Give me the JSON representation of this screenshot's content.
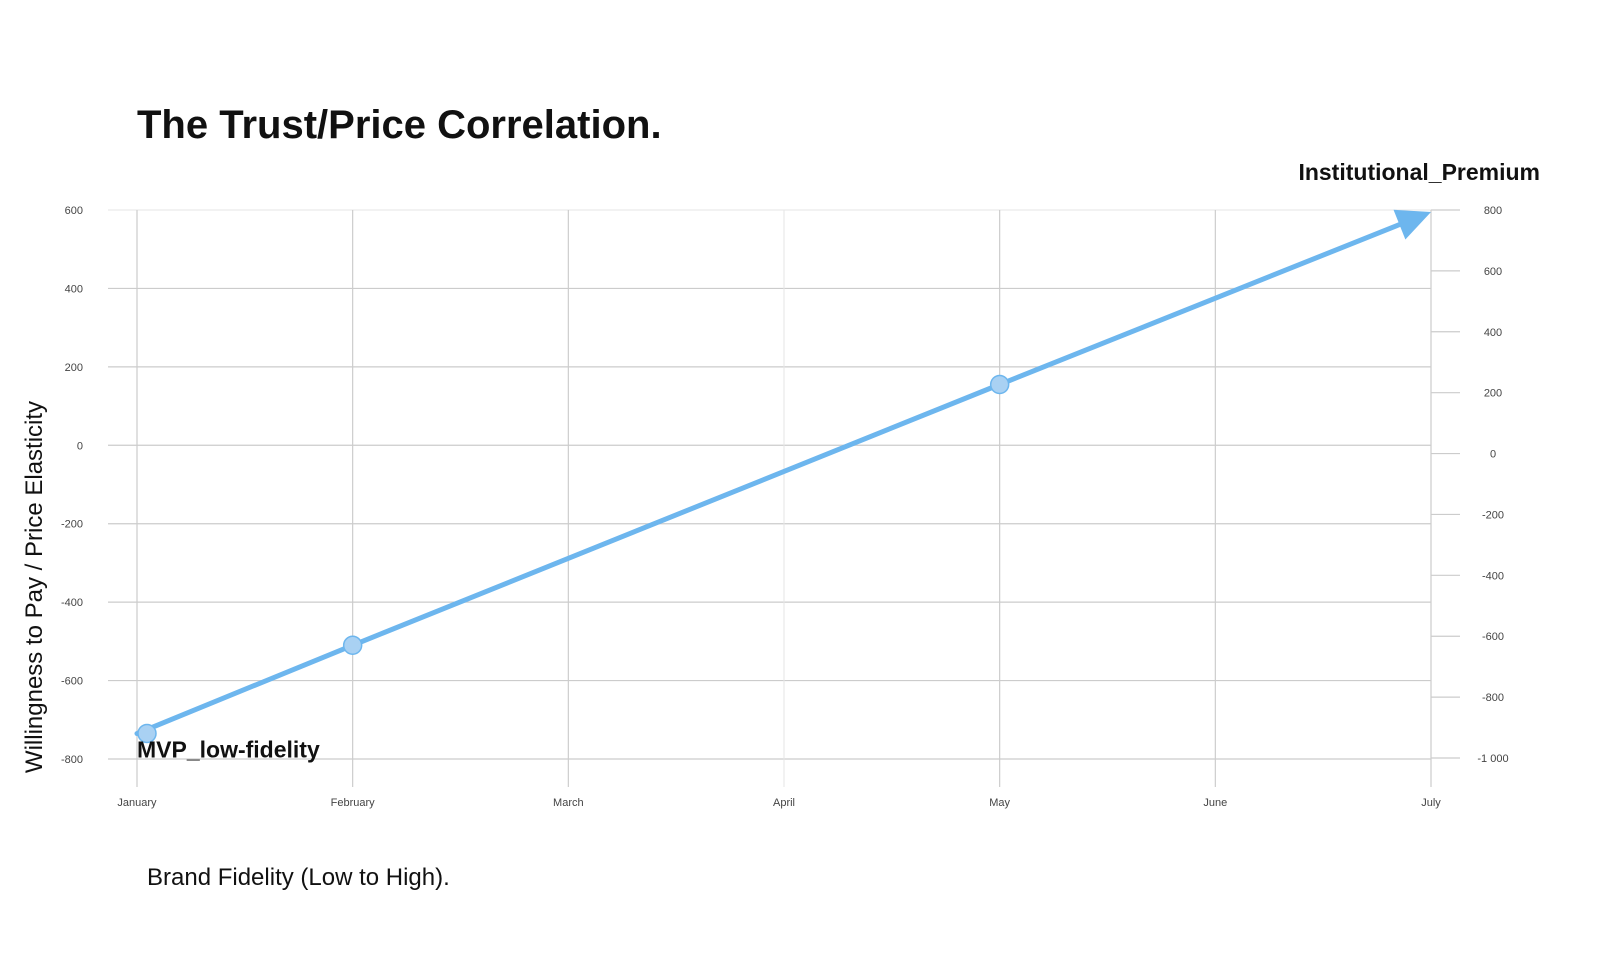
{
  "chart_data": {
    "type": "line",
    "title": "The Trust/Price Correlation.",
    "xlabel": "Brand Fidelity (Low to High).",
    "ylabel": "Willingness to Pay / Price Elasticity",
    "categories": [
      "January",
      "February",
      "March",
      "April",
      "May",
      "June",
      "July"
    ],
    "y_left_ticks": [
      "600",
      "400",
      "200",
      "0",
      "-200",
      "-400",
      "-600",
      "-800"
    ],
    "y_right_ticks": [
      "800",
      "600",
      "400",
      "200",
      "0",
      "-200",
      "-400",
      "-600",
      "-800",
      "-1 000"
    ],
    "ylim_left": [
      -800,
      600
    ],
    "ylim_right": [
      -1000,
      800
    ],
    "grid": true,
    "series": [
      {
        "x": [
          "January",
          "February",
          "May",
          "July"
        ],
        "values": [
          -735,
          -510,
          155,
          595
        ],
        "color": "#6db6ee",
        "marker_color": "#a9d1f3",
        "end_arrow": true
      }
    ],
    "annotations": [
      {
        "text": "MVP_low-fidelity",
        "x": "January",
        "y": -735
      },
      {
        "text": "Institutional_Premium",
        "x": "July",
        "y": 595
      }
    ]
  }
}
